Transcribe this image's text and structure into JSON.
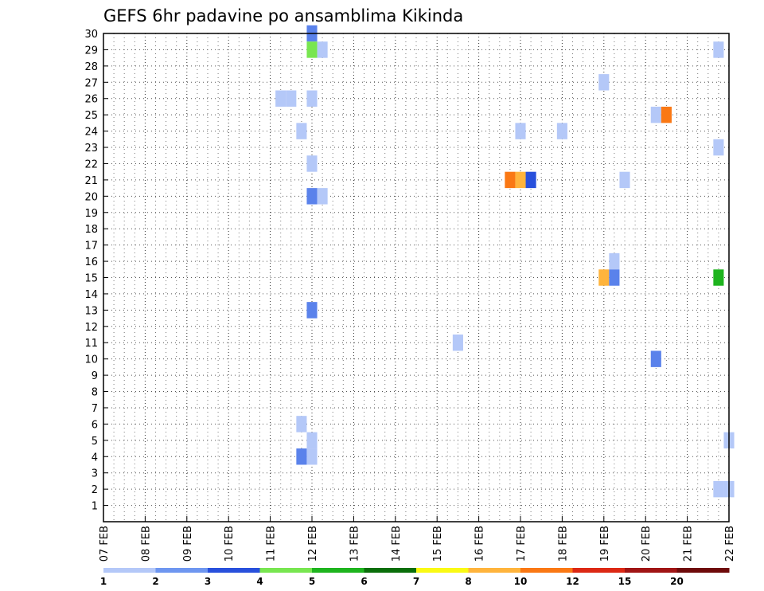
{
  "chart_data": {
    "type": "heatmap",
    "title": "GEFS 6hr padavine po ansamblima Kikinda",
    "xlabel": "",
    "ylabel": "",
    "x_tick_labels": [
      "07 FEB",
      "08 FEB",
      "09 FEB",
      "10 FEB",
      "11 FEB",
      "12 FEB",
      "13 FEB",
      "14 FEB",
      "15 FEB",
      "16 FEB",
      "17 FEB",
      "18 FEB",
      "19 FEB",
      "20 FEB",
      "21 FEB",
      "22 FEB"
    ],
    "x_range_days": [
      0,
      15
    ],
    "y_range": [
      0,
      30
    ],
    "y_ticks": [
      1,
      2,
      3,
      4,
      5,
      6,
      7,
      8,
      9,
      10,
      11,
      12,
      13,
      14,
      15,
      16,
      17,
      18,
      19,
      20,
      21,
      22,
      23,
      24,
      25,
      26,
      27,
      28,
      29,
      30
    ],
    "grid": true,
    "legend": {
      "placement": "bottom",
      "colors": [
        "#b4c8f8",
        "#6e96f0",
        "#2850dc",
        "#78e650",
        "#1eb41e",
        "#0a6e0a",
        "#fafa14",
        "#ffb43c",
        "#fa7814",
        "#dc2814",
        "#a01414",
        "#6e0a0a"
      ],
      "labels": [
        "1",
        "2",
        "3",
        "4",
        "5",
        "6",
        "7",
        "8",
        "10",
        "12",
        "15",
        "20"
      ]
    },
    "cells": [
      {
        "member": 30,
        "day": 5.0,
        "color": "#5a82eb"
      },
      {
        "member": 29,
        "day": 5.0,
        "color": "#78e650"
      },
      {
        "member": 29,
        "day": 5.25,
        "color": "#b4c8f8"
      },
      {
        "member": 29,
        "day": 14.75,
        "color": "#b4c8f8"
      },
      {
        "member": 27,
        "day": 12.0,
        "color": "#b4c8f8"
      },
      {
        "member": 26,
        "day": 4.25,
        "color": "#b4c8f8"
      },
      {
        "member": 26,
        "day": 4.5,
        "color": "#b4c8f8"
      },
      {
        "member": 26,
        "day": 5.0,
        "color": "#b4c8f8"
      },
      {
        "member": 25,
        "day": 13.25,
        "color": "#b4c8f8"
      },
      {
        "member": 25,
        "day": 13.5,
        "color": "#fa7814"
      },
      {
        "member": 24,
        "day": 4.75,
        "color": "#b4c8f8"
      },
      {
        "member": 24,
        "day": 10.0,
        "color": "#b4c8f8"
      },
      {
        "member": 24,
        "day": 11.0,
        "color": "#b4c8f8"
      },
      {
        "member": 23,
        "day": 14.75,
        "color": "#b4c8f8"
      },
      {
        "member": 22,
        "day": 5.0,
        "color": "#b4c8f8"
      },
      {
        "member": 21,
        "day": 9.75,
        "color": "#fa7814"
      },
      {
        "member": 21,
        "day": 10.0,
        "color": "#ffb43c"
      },
      {
        "member": 21,
        "day": 10.25,
        "color": "#2850dc"
      },
      {
        "member": 21,
        "day": 12.5,
        "color": "#b4c8f8"
      },
      {
        "member": 20,
        "day": 5.0,
        "color": "#5a82eb"
      },
      {
        "member": 20,
        "day": 5.25,
        "color": "#b4c8f8"
      },
      {
        "member": 16,
        "day": 12.25,
        "color": "#b4c8f8"
      },
      {
        "member": 15,
        "day": 14.75,
        "color": "#1eb41e"
      },
      {
        "member": 15,
        "day": 12.0,
        "color": "#ffb43c"
      },
      {
        "member": 15,
        "day": 12.25,
        "color": "#5a82eb"
      },
      {
        "member": 13,
        "day": 5.0,
        "color": "#5a82eb"
      },
      {
        "member": 11,
        "day": 8.5,
        "color": "#b4c8f8"
      },
      {
        "member": 10,
        "day": 13.25,
        "color": "#5a82eb"
      },
      {
        "member": 6,
        "day": 4.75,
        "color": "#b4c8f8"
      },
      {
        "member": 5,
        "day": 5.0,
        "color": "#b4c8f8"
      },
      {
        "member": 5,
        "day": 15.0,
        "color": "#b4c8f8"
      },
      {
        "member": 4,
        "day": 4.75,
        "color": "#5a82eb"
      },
      {
        "member": 4,
        "day": 5.0,
        "color": "#b4c8f8"
      },
      {
        "member": 2,
        "day": 14.75,
        "color": "#b4c8f8"
      },
      {
        "member": 2,
        "day": 15.0,
        "color": "#b4c8f8"
      }
    ]
  }
}
